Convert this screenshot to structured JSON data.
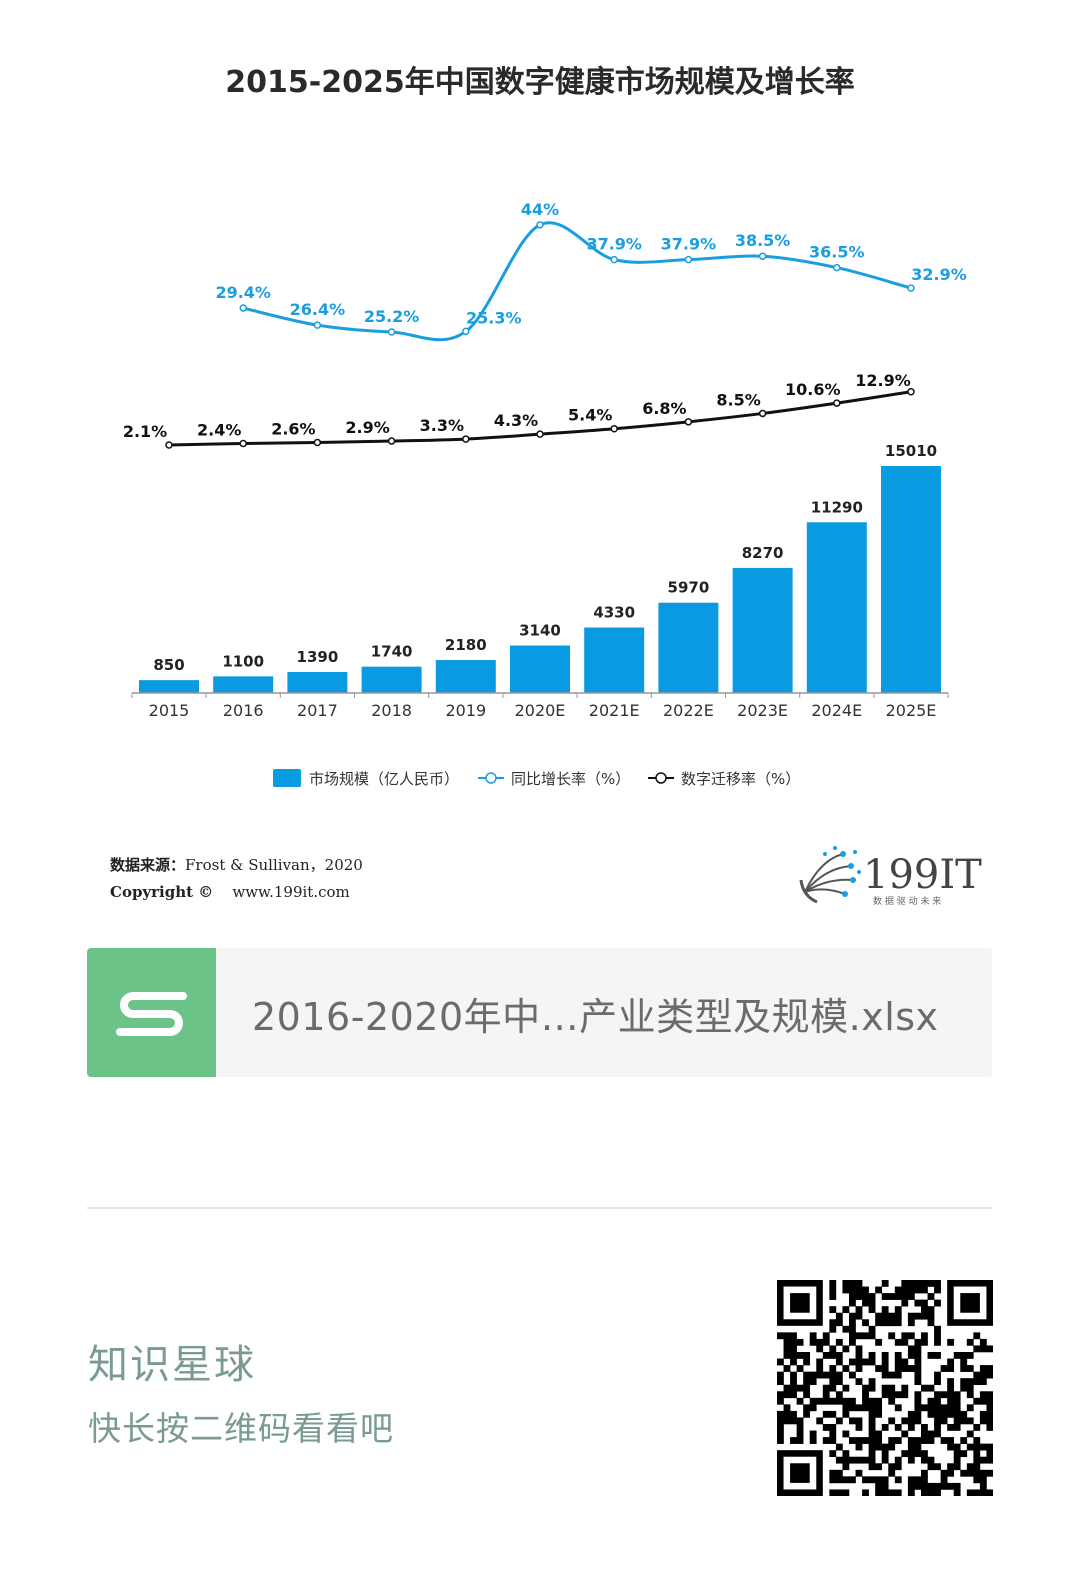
{
  "chart_data": {
    "type": "bar",
    "title": "2015-2025年中国数字健康市场规模及增长率",
    "categories": [
      "2015",
      "2016",
      "2017",
      "2018",
      "2019",
      "2020E",
      "2021E",
      "2022E",
      "2023E",
      "2024E",
      "2025E"
    ],
    "series": [
      {
        "name": "市场规模（亿人民币）",
        "type": "bar",
        "color": "#0a9ae2",
        "values": [
          850,
          1100,
          1390,
          1740,
          2180,
          3140,
          4330,
          5970,
          8270,
          11290,
          15010
        ],
        "labels": [
          "850",
          "1100",
          "1390",
          "1740",
          "2180",
          "3140",
          "4330",
          "5970",
          "8270",
          "11290",
          "15010"
        ]
      },
      {
        "name": "同比增长率（%）",
        "type": "line",
        "color": "#1a9ee0",
        "values": [
          null,
          29.4,
          26.4,
          25.2,
          25.3,
          44,
          37.9,
          37.9,
          38.5,
          36.5,
          32.9
        ],
        "labels": [
          "",
          "29.4%",
          "26.4%",
          "25.2%",
          "25.3%",
          "44%",
          "37.9%",
          "37.9%",
          "38.5%",
          "36.5%",
          "32.9%"
        ]
      },
      {
        "name": "数字迁移率（%）",
        "type": "line",
        "color": "#111111",
        "values": [
          2.1,
          2.4,
          2.6,
          2.9,
          3.3,
          4.3,
          5.4,
          6.8,
          8.5,
          10.6,
          12.9
        ],
        "labels": [
          "2.1%",
          "2.4%",
          "2.6%",
          "2.9%",
          "3.3%",
          "4.3%",
          "5.4%",
          "6.8%",
          "8.5%",
          "10.6%",
          "12.9%"
        ]
      }
    ],
    "ylim": [
      0,
      15010
    ],
    "grid": false,
    "legend_position": "bottom"
  },
  "source": {
    "label": "数据来源：",
    "text": "Frost & Sullivan，2020",
    "copyright_label": "Copyright ©",
    "url": "www.199it.com"
  },
  "logo": {
    "text": "199IT",
    "tagline": "数 据 驱 动 未 来"
  },
  "file_card": {
    "name": "2016-2020年中…产业类型及规模.xlsx",
    "icon": "spreadsheet-s-icon"
  },
  "planet": {
    "title": "知识星球",
    "subtitle": "快长按二维码看看吧"
  },
  "qr": {
    "icon": "qr-code"
  }
}
